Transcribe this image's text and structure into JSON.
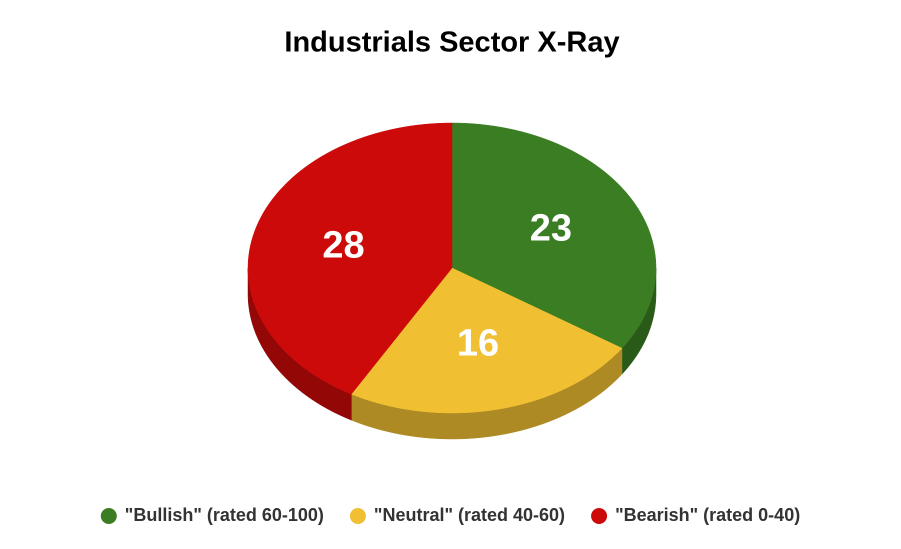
{
  "chart_data": {
    "type": "pie",
    "title": "Industrials Sector X-Ray",
    "categories": [
      "\"Bullish\" (rated 60-100)",
      "\"Neutral\" (rated 40-60)",
      "\"Bearish\" (rated 0-40)"
    ],
    "values": [
      23,
      16,
      28
    ],
    "colors": [
      "#3a7d22",
      "#f0c032",
      "#cc0a0a"
    ],
    "legend": "bottom"
  }
}
